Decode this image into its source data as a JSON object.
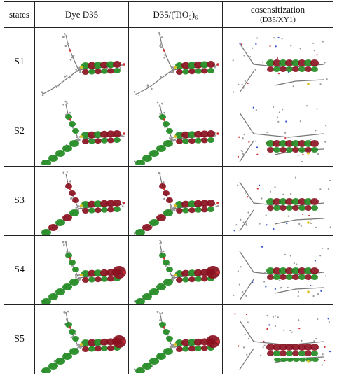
{
  "table": {
    "headers": {
      "states": "states",
      "dye": "Dye D35",
      "tio2": "D35/(TiO₂)₆",
      "cosens_line1": "cosensitization",
      "cosens_line2": "(D35/XY1)"
    },
    "rows": [
      {
        "state": "S1"
      },
      {
        "state": "S2"
      },
      {
        "state": "S3"
      },
      {
        "state": "S4"
      },
      {
        "state": "S5"
      }
    ]
  },
  "colors": {
    "orbital_green": "#1f8a1f",
    "orbital_red": "#8a1020",
    "atom_gray": "#9a9a9a",
    "atom_red": "#d23030",
    "atom_blue": "#3050d0",
    "atom_yellow": "#d8c020"
  }
}
